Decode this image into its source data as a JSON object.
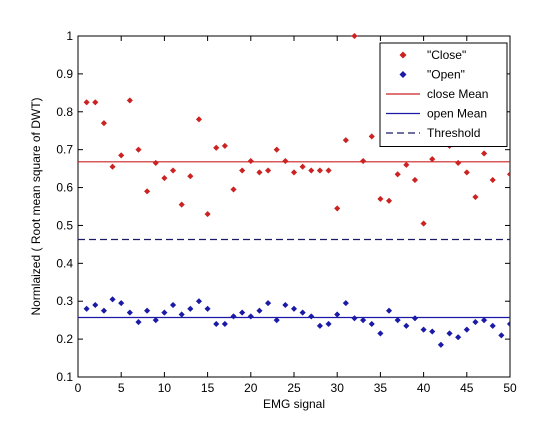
{
  "chart_data": {
    "type": "scatter",
    "xlabel": "EMG signal",
    "ylabel": "Normlaized ( Root mean square of DWT)",
    "xlim": [
      0,
      50
    ],
    "ylim": [
      0.1,
      1
    ],
    "xticks": [
      "0",
      "5",
      "10",
      "15",
      "20",
      "25",
      "30",
      "35",
      "40",
      "45",
      "50"
    ],
    "yticks": [
      "0.1",
      "0.2",
      "0.3",
      "0.4",
      "0.5",
      "0.6",
      "0.7",
      "0.8",
      "0.9",
      "1"
    ],
    "grid": false,
    "legend_position": "top-right",
    "series": [
      {
        "name": "\"Close\"",
        "kind": "points",
        "color": "#cc2222",
        "x": [
          1,
          2,
          3,
          4,
          5,
          6,
          7,
          8,
          9,
          10,
          11,
          12,
          13,
          14,
          15,
          16,
          17,
          18,
          19,
          20,
          21,
          22,
          23,
          24,
          25,
          26,
          27,
          28,
          29,
          30,
          31,
          32,
          33,
          34,
          35,
          36,
          37,
          38,
          39,
          40,
          41,
          42,
          43,
          44,
          45,
          46,
          47,
          48,
          49,
          50
        ],
        "y": [
          0.825,
          0.825,
          0.77,
          0.655,
          0.685,
          0.83,
          0.7,
          0.59,
          0.665,
          0.625,
          0.645,
          0.555,
          0.63,
          0.78,
          0.53,
          0.705,
          0.71,
          0.595,
          0.645,
          0.67,
          0.64,
          0.645,
          0.7,
          0.67,
          0.64,
          0.655,
          0.645,
          0.645,
          0.645,
          0.545,
          0.725,
          1.0,
          0.67,
          0.735,
          0.57,
          0.565,
          0.635,
          0.66,
          0.62,
          0.505,
          0.675,
          0.775,
          0.71,
          0.665,
          0.64,
          0.575,
          0.69,
          0.62,
          0.72,
          0.635
        ]
      },
      {
        "name": "\"Open\"",
        "kind": "points",
        "color": "#1a1aa6",
        "x": [
          1,
          2,
          3,
          4,
          5,
          6,
          7,
          8,
          9,
          10,
          11,
          12,
          13,
          14,
          15,
          16,
          17,
          18,
          19,
          20,
          21,
          22,
          23,
          24,
          25,
          26,
          27,
          28,
          29,
          30,
          31,
          32,
          33,
          34,
          35,
          36,
          37,
          38,
          39,
          40,
          41,
          42,
          43,
          44,
          45,
          46,
          47,
          48,
          49,
          50
        ],
        "y": [
          0.28,
          0.29,
          0.275,
          0.305,
          0.295,
          0.27,
          0.245,
          0.275,
          0.25,
          0.27,
          0.29,
          0.265,
          0.28,
          0.3,
          0.28,
          0.24,
          0.24,
          0.26,
          0.27,
          0.26,
          0.275,
          0.295,
          0.25,
          0.29,
          0.28,
          0.27,
          0.26,
          0.235,
          0.24,
          0.265,
          0.295,
          0.255,
          0.25,
          0.24,
          0.215,
          0.275,
          0.25,
          0.235,
          0.255,
          0.225,
          0.22,
          0.185,
          0.215,
          0.205,
          0.225,
          0.245,
          0.25,
          0.235,
          0.21,
          0.24
        ]
      },
      {
        "name": "close Mean",
        "kind": "hline",
        "color": "#cc2222",
        "y": 0.668,
        "dash": "solid"
      },
      {
        "name": "open Mean",
        "kind": "hline",
        "color": "#1a1aa6",
        "y": 0.257,
        "dash": "solid"
      },
      {
        "name": "Threshold",
        "kind": "hline",
        "color": "#1a1a66",
        "y": 0.463,
        "dash": "dashed"
      }
    ]
  }
}
